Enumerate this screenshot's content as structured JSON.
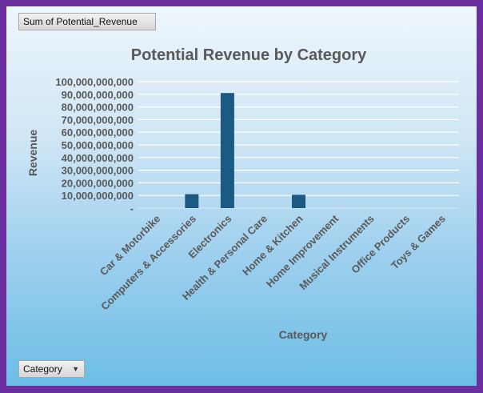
{
  "filter_button": {
    "label": "Sum of Potential_Revenue"
  },
  "category_button": {
    "label": "Category",
    "icon": "chevron-down-icon"
  },
  "colors": {
    "bar": "#1a5a83",
    "text": "#595959",
    "gridline": "#ffffff",
    "frame": "#6b2fa0"
  },
  "chart_data": {
    "type": "bar",
    "title": "Potential Revenue by Category",
    "xlabel": "Category",
    "ylabel": "Revenue",
    "ylim": [
      0,
      100000000000
    ],
    "yticks": [
      0,
      10000000000,
      20000000000,
      30000000000,
      40000000000,
      50000000000,
      60000000000,
      70000000000,
      80000000000,
      90000000000,
      100000000000
    ],
    "ytick_labels": [
      "-",
      "10,000,000,000",
      "20,000,000,000",
      "30,000,000,000",
      "40,000,000,000",
      "50,000,000,000",
      "60,000,000,000",
      "70,000,000,000",
      "80,000,000,000",
      "90,000,000,000",
      "100,000,000,000"
    ],
    "categories": [
      "Car & Motorbike",
      "Computers & Accessories",
      "Electronics",
      "Health & Personal Care",
      "Home & Kitchen",
      "Home Improvement",
      "Musical Instruments",
      "Office Products",
      "Toys & Games"
    ],
    "values": [
      0,
      11000000000,
      91000000000,
      0,
      10500000000,
      0,
      0,
      0,
      0
    ],
    "grid": true,
    "legend": "none"
  }
}
